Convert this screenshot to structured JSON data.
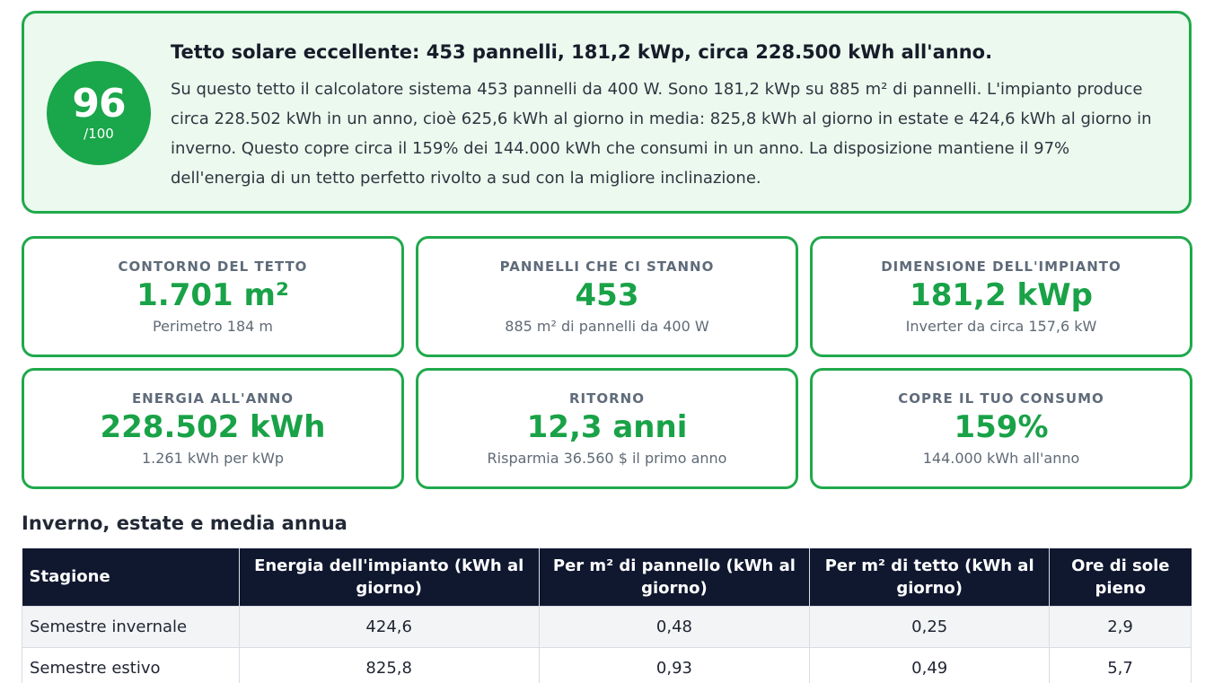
{
  "summary": {
    "score": "96",
    "score_max": "/100",
    "title": "Tetto solare eccellente: 453 pannelli, 181,2 kWp, circa 228.500 kWh all'anno.",
    "text": "Su questo tetto il calcolatore sistema 453 pannelli da 400 W. Sono 181,2 kWp su 885 m² di pannelli. L'impianto produce circa 228.502 kWh in un anno, cioè 625,6 kWh al giorno in media: 825,8 kWh al giorno in estate e 424,6 kWh al giorno in inverno. Questo copre circa il 159% dei 144.000 kWh che consumi in un anno. La disposizione mantiene il 97% dell'energia di un tetto perfetto rivolto a sud con la migliore inclinazione."
  },
  "stats": [
    {
      "label": "CONTORNO DEL TETTO",
      "value": "1.701 m²",
      "sub": "Perimetro 184 m"
    },
    {
      "label": "PANNELLI CHE CI STANNO",
      "value": "453",
      "sub": "885 m² di pannelli da 400 W"
    },
    {
      "label": "DIMENSIONE DELL'IMPIANTO",
      "value": "181,2 kWp",
      "sub": "Inverter da circa 157,6 kW"
    },
    {
      "label": "ENERGIA ALL'ANNO",
      "value": "228.502 kWh",
      "sub": "1.261 kWh per kWp"
    },
    {
      "label": "RITORNO",
      "value": "12,3 anni",
      "sub": "Risparmia 36.560 $ il primo anno"
    },
    {
      "label": "COPRE IL TUO CONSUMO",
      "value": "159%",
      "sub": "144.000 kWh all'anno"
    }
  ],
  "season_table": {
    "title": "Inverno, estate e media annua",
    "headers": [
      "Stagione",
      "Energia dell'impianto (kWh al giorno)",
      "Per m² di pannello (kWh al giorno)",
      "Per m² di tetto (kWh al giorno)",
      "Ore di sole pieno"
    ],
    "rows": [
      [
        "Semestre invernale",
        "424,6",
        "0,48",
        "0,25",
        "2,9"
      ],
      [
        "Semestre estivo",
        "825,8",
        "0,93",
        "0,49",
        "5,7"
      ]
    ]
  },
  "colors": {
    "accent_green": "#19a247",
    "card_background": "#ebf9ee",
    "table_header": "#101830"
  }
}
